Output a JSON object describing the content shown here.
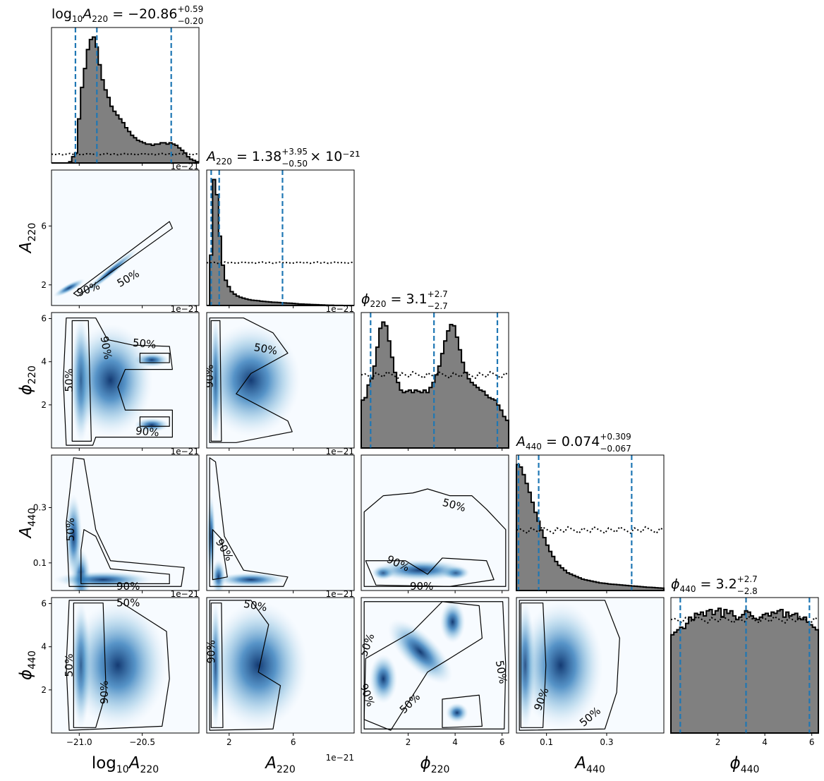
{
  "figure": {
    "type": "corner-plot",
    "parameters": [
      {
        "key": "logA220",
        "axis_label": "log₁₀A₂₂₀",
        "sym": "log",
        "sub": "10",
        "sym2": "A",
        "sub2": "220",
        "title": {
          "name": "log",
          "sub": "10",
          "name2": "A",
          "sub2": "220",
          "value": " = −20.86",
          "plus": "+0.59",
          "minus": "−0.20",
          "suffix": ""
        },
        "range": [
          -21.22,
          -20.05
        ],
        "ticks": [
          -21.0,
          -20.5
        ],
        "tick_labels": [
          "−21.0",
          "−20.5"
        ],
        "quantiles": [
          -21.03,
          -20.86,
          -20.27
        ],
        "offset_text": "1e−21"
      },
      {
        "key": "A220",
        "axis_label": "A₂₂₀",
        "sym": "A",
        "sub": "220",
        "title": {
          "name": "A",
          "sub": "220",
          "value": " = 1.38",
          "plus": "+3.95",
          "minus": "−0.50",
          "suffix": " × 10⁻²¹"
        },
        "range": [
          0.6,
          9.8
        ],
        "ticks": [
          2,
          6
        ],
        "tick_labels": [
          "2",
          "6"
        ],
        "quantiles": [
          0.88,
          1.38,
          5.33
        ],
        "offset_text": "1e−21"
      },
      {
        "key": "phi220",
        "axis_label": "ϕ₂₂₀",
        "sym": "ϕ",
        "sub": "220",
        "title": {
          "name": "ϕ",
          "sub": "220",
          "value": " = 3.1",
          "plus": "+2.7",
          "minus": "−2.7",
          "suffix": ""
        },
        "range": [
          0.0,
          6.28
        ],
        "ticks": [
          2,
          4,
          6
        ],
        "tick_labels": [
          "2",
          "4",
          "6"
        ],
        "quantiles": [
          0.4,
          3.1,
          5.8
        ],
        "offset_text": ""
      },
      {
        "key": "A440",
        "axis_label": "A₄₄₀",
        "sym": "A",
        "sub": "440",
        "title": {
          "name": "A",
          "sub": "440",
          "value": " = 0.074",
          "plus": "+0.309",
          "minus": "−0.067",
          "suffix": ""
        },
        "range": [
          0.0,
          0.49
        ],
        "ticks": [
          0.1,
          0.3
        ],
        "tick_labels": [
          "0.1",
          "0.3"
        ],
        "quantiles": [
          0.007,
          0.074,
          0.383
        ],
        "offset_text": ""
      },
      {
        "key": "phi440",
        "axis_label": "ϕ₄₄₀",
        "sym": "ϕ",
        "sub": "440",
        "title": {
          "name": "ϕ",
          "sub": "440",
          "value": " = 3.2",
          "plus": "+2.7",
          "minus": "−2.8",
          "suffix": ""
        },
        "range": [
          0.0,
          6.28
        ],
        "ticks": [
          2,
          4,
          6
        ],
        "tick_labels": [
          "2",
          "4",
          "6"
        ],
        "quantiles": [
          0.4,
          3.2,
          5.9
        ],
        "offset_text": ""
      }
    ],
    "contour_levels": [
      "50%",
      "90%"
    ],
    "colors": {
      "hist_fill": "#808080",
      "hist_edge": "#000000",
      "quantile_line": "#1f77b4",
      "density_low": "#f7fbff",
      "density_high": "#08306b",
      "prior_line": "#000000"
    }
  },
  "chart_data": {
    "type": "corner",
    "title": "",
    "marginals": [
      {
        "param": "log10A220",
        "x_start": -21.2,
        "x_step": 0.0234,
        "heights": [
          0,
          0,
          0,
          0,
          0,
          0.01,
          0.05,
          0.08,
          0.35,
          0.6,
          0.75,
          0.9,
          0.98,
          1.0,
          0.92,
          0.78,
          0.66,
          0.58,
          0.52,
          0.45,
          0.41,
          0.38,
          0.35,
          0.32,
          0.28,
          0.25,
          0.22,
          0.2,
          0.18,
          0.17,
          0.16,
          0.15,
          0.15,
          0.14,
          0.15,
          0.15,
          0.16,
          0.16,
          0.15,
          0.16,
          0.15,
          0.14,
          0.12,
          0.1,
          0.08,
          0.05,
          0.03,
          0.02,
          0.01,
          0.0
        ]
      },
      {
        "param": "A220",
        "x_start": 0.6,
        "x_step": 0.184,
        "heights": [
          0,
          0.4,
          1.0,
          0.88,
          0.55,
          0.32,
          0.2,
          0.15,
          0.11,
          0.09,
          0.075,
          0.065,
          0.058,
          0.052,
          0.046,
          0.042,
          0.04,
          0.038,
          0.034,
          0.032,
          0.03,
          0.028,
          0.026,
          0.025,
          0.024,
          0.022,
          0.02,
          0.019,
          0.018,
          0.016,
          0.014,
          0.012,
          0.011,
          0.01,
          0.009,
          0.008,
          0.007,
          0.006,
          0.005,
          0.004,
          0.003,
          0.002,
          0.002,
          0.001,
          0.001,
          0.001,
          0.0,
          0.0,
          0.0,
          0.0
        ]
      },
      {
        "param": "phi220",
        "x_start": 0.0,
        "x_step": 0.1256,
        "heights": [
          0.38,
          0.4,
          0.5,
          0.55,
          0.65,
          0.8,
          0.95,
          1.0,
          0.97,
          0.85,
          0.72,
          0.6,
          0.52,
          0.46,
          0.44,
          0.45,
          0.46,
          0.44,
          0.46,
          0.45,
          0.44,
          0.46,
          0.44,
          0.48,
          0.52,
          0.58,
          0.65,
          0.75,
          0.85,
          0.93,
          0.98,
          0.97,
          0.88,
          0.78,
          0.68,
          0.6,
          0.55,
          0.52,
          0.5,
          0.48,
          0.46,
          0.45,
          0.42,
          0.4,
          0.39,
          0.38,
          0.34,
          0.3,
          0.25,
          0.22
        ]
      },
      {
        "param": "A440",
        "x_start": 0.0,
        "x_step": 0.0098,
        "heights": [
          1.0,
          0.98,
          0.92,
          0.85,
          0.78,
          0.7,
          0.62,
          0.55,
          0.48,
          0.42,
          0.36,
          0.31,
          0.27,
          0.23,
          0.2,
          0.18,
          0.16,
          0.14,
          0.13,
          0.12,
          0.11,
          0.1,
          0.09,
          0.085,
          0.08,
          0.075,
          0.07,
          0.065,
          0.06,
          0.058,
          0.055,
          0.052,
          0.05,
          0.048,
          0.046,
          0.044,
          0.042,
          0.04,
          0.038,
          0.036,
          0.034,
          0.032,
          0.03,
          0.028,
          0.026,
          0.025,
          0.024,
          0.022,
          0.02,
          0.019
        ]
      },
      {
        "param": "phi440",
        "x_start": 0.0,
        "x_step": 0.1256,
        "heights": [
          0.78,
          0.8,
          0.82,
          0.84,
          0.83,
          0.87,
          0.92,
          0.9,
          0.95,
          0.94,
          0.96,
          0.93,
          0.97,
          0.98,
          0.94,
          0.97,
          0.99,
          0.92,
          0.98,
          0.95,
          0.97,
          0.93,
          0.9,
          0.92,
          0.94,
          0.97,
          0.96,
          0.93,
          0.91,
          0.9,
          0.92,
          0.94,
          0.95,
          0.93,
          0.96,
          0.95,
          0.97,
          0.98,
          0.92,
          0.96,
          0.93,
          0.94,
          0.95,
          0.91,
          0.9,
          0.92,
          0.88,
          0.86,
          0.84,
          0.82
        ]
      }
    ],
    "prior_levels": [
      0.07,
      0.34,
      0.58,
      0.48,
      0.9
    ]
  }
}
